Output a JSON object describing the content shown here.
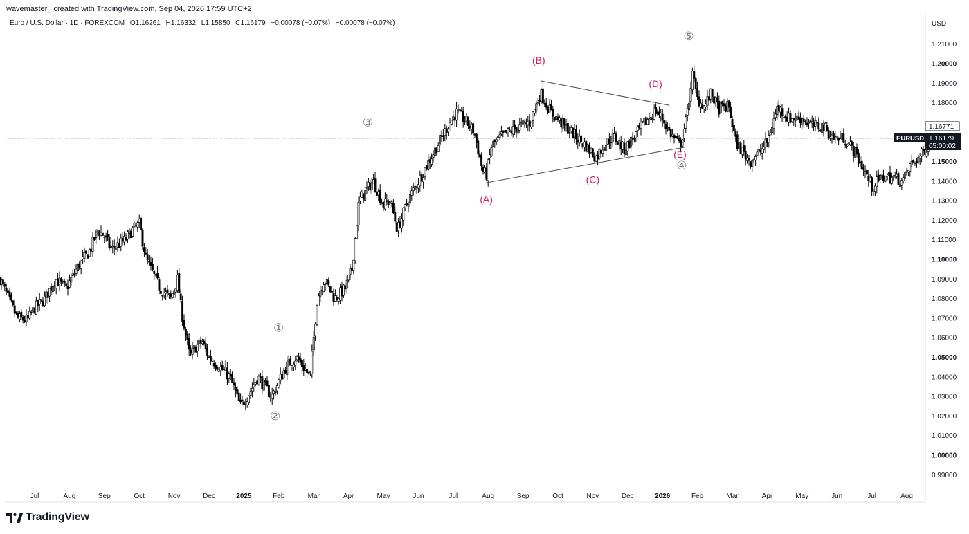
{
  "header": {
    "credit": "wavemaster_ created with TradingView.com, Sep 04, 2026 17:59 UTC+2",
    "legend": {
      "symbol": "Euro / U.S. Dollar · 1D · FOREXCOM",
      "open": "O1.16261",
      "high": "H1.16332",
      "low": "L1.15850",
      "close": "C1.16179",
      "change": "−0.00078 (−0.07%)",
      "change2": "−0.00078 (−0.07%)"
    }
  },
  "price_axis": {
    "currency": "USD",
    "ticker": "EURUSD",
    "last_price": "1.16179",
    "countdown": "05:00:02",
    "marker_price": "1.16771"
  },
  "brand": {
    "name": "TradingView"
  },
  "colors": {
    "wave_labels": "#d81b60",
    "cycle_labels": "#787b86",
    "candles": "#000000",
    "price_tag": "#131722"
  },
  "chart_data": {
    "type": "candlestick",
    "symbol": "EURUSD",
    "timeframe": "1D",
    "x_range": [
      "2024-06",
      "2026-09"
    ],
    "ylim": [
      0.985,
      1.215
    ],
    "y_ticks": [
      {
        "v": 0.99,
        "label": "0.99000",
        "bold": false
      },
      {
        "v": 1.0,
        "label": "1.00000",
        "bold": true
      },
      {
        "v": 1.01,
        "label": "1.01000",
        "bold": false
      },
      {
        "v": 1.02,
        "label": "1.02000",
        "bold": false
      },
      {
        "v": 1.03,
        "label": "1.03000",
        "bold": false
      },
      {
        "v": 1.04,
        "label": "1.04000",
        "bold": false
      },
      {
        "v": 1.05,
        "label": "1.05000",
        "bold": true
      },
      {
        "v": 1.06,
        "label": "1.06000",
        "bold": false
      },
      {
        "v": 1.07,
        "label": "1.07000",
        "bold": false
      },
      {
        "v": 1.08,
        "label": "1.08000",
        "bold": false
      },
      {
        "v": 1.09,
        "label": "1.09000",
        "bold": false
      },
      {
        "v": 1.1,
        "label": "1.10000",
        "bold": true
      },
      {
        "v": 1.11,
        "label": "1.11000",
        "bold": false
      },
      {
        "v": 1.12,
        "label": "1.12000",
        "bold": false
      },
      {
        "v": 1.13,
        "label": "1.13000",
        "bold": false
      },
      {
        "v": 1.14,
        "label": "1.14000",
        "bold": false
      },
      {
        "v": 1.15,
        "label": "1.15000",
        "bold": true
      },
      {
        "v": 1.18,
        "label": "1.18000",
        "bold": false
      },
      {
        "v": 1.19,
        "label": "1.19000",
        "bold": false
      },
      {
        "v": 1.2,
        "label": "1.20000",
        "bold": true
      },
      {
        "v": 1.21,
        "label": "1.21000",
        "bold": false
      }
    ],
    "x_ticks": [
      {
        "t": 1.0,
        "label": "Jul",
        "bold": false
      },
      {
        "t": 2.0,
        "label": "Aug",
        "bold": false
      },
      {
        "t": 3.0,
        "label": "Sep",
        "bold": false
      },
      {
        "t": 4.0,
        "label": "Oct",
        "bold": false
      },
      {
        "t": 5.0,
        "label": "Nov",
        "bold": false
      },
      {
        "t": 6.0,
        "label": "Dec",
        "bold": false
      },
      {
        "t": 7.0,
        "label": "2025",
        "bold": true
      },
      {
        "t": 8.0,
        "label": "Feb",
        "bold": false
      },
      {
        "t": 9.0,
        "label": "Mar",
        "bold": false
      },
      {
        "t": 10.0,
        "label": "Apr",
        "bold": false
      },
      {
        "t": 11.0,
        "label": "May",
        "bold": false
      },
      {
        "t": 12.0,
        "label": "Jun",
        "bold": false
      },
      {
        "t": 13.0,
        "label": "Jul",
        "bold": false
      },
      {
        "t": 14.0,
        "label": "Aug",
        "bold": false
      },
      {
        "t": 15.0,
        "label": "Sep",
        "bold": false
      },
      {
        "t": 16.0,
        "label": "Oct",
        "bold": false
      },
      {
        "t": 17.0,
        "label": "Nov",
        "bold": false
      },
      {
        "t": 18.0,
        "label": "Dec",
        "bold": false
      },
      {
        "t": 19.0,
        "label": "2026",
        "bold": true
      },
      {
        "t": 20.0,
        "label": "Feb",
        "bold": false
      },
      {
        "t": 21.0,
        "label": "Mar",
        "bold": false
      },
      {
        "t": 22.0,
        "label": "Apr",
        "bold": false
      },
      {
        "t": 23.0,
        "label": "May",
        "bold": false
      },
      {
        "t": 24.0,
        "label": "Jun",
        "bold": false
      },
      {
        "t": 25.0,
        "label": "Jul",
        "bold": false
      },
      {
        "t": 26.0,
        "label": "Aug",
        "bold": false
      }
    ],
    "price_path": [
      [
        0.0,
        1.09
      ],
      [
        0.2,
        1.082
      ],
      [
        0.5,
        1.07
      ],
      [
        0.8,
        1.069
      ],
      [
        1.0,
        1.075
      ],
      [
        1.3,
        1.08
      ],
      [
        1.6,
        1.09
      ],
      [
        1.9,
        1.085
      ],
      [
        2.2,
        1.095
      ],
      [
        2.6,
        1.105
      ],
      [
        2.8,
        1.115
      ],
      [
        3.0,
        1.112
      ],
      [
        3.2,
        1.105
      ],
      [
        3.6,
        1.11
      ],
      [
        3.8,
        1.115
      ],
      [
        4.0,
        1.118
      ],
      [
        4.2,
        1.1
      ],
      [
        4.6,
        1.085
      ],
      [
        4.9,
        1.08
      ],
      [
        5.1,
        1.09
      ],
      [
        5.2,
        1.075
      ],
      [
        5.45,
        1.05
      ],
      [
        5.6,
        1.055
      ],
      [
        5.8,
        1.058
      ],
      [
        6.0,
        1.05
      ],
      [
        6.3,
        1.045
      ],
      [
        6.6,
        1.04
      ],
      [
        6.9,
        1.025
      ],
      [
        7.1,
        1.03
      ],
      [
        7.4,
        1.04
      ],
      [
        7.6,
        1.035
      ],
      [
        7.8,
        1.03
      ],
      [
        8.2,
        1.045
      ],
      [
        8.5,
        1.05
      ],
      [
        8.9,
        1.04
      ],
      [
        9.1,
        1.08
      ],
      [
        9.3,
        1.09
      ],
      [
        9.6,
        1.08
      ],
      [
        9.9,
        1.085
      ],
      [
        10.1,
        1.095
      ],
      [
        10.3,
        1.13
      ],
      [
        10.5,
        1.135
      ],
      [
        10.7,
        1.14
      ],
      [
        11.0,
        1.128
      ],
      [
        11.2,
        1.13
      ],
      [
        11.4,
        1.115
      ],
      [
        11.7,
        1.13
      ],
      [
        12.0,
        1.14
      ],
      [
        12.3,
        1.15
      ],
      [
        12.6,
        1.16
      ],
      [
        12.9,
        1.17
      ],
      [
        13.1,
        1.175
      ],
      [
        13.4,
        1.17
      ],
      [
        13.6,
        1.165
      ],
      [
        13.85,
        1.145
      ],
      [
        13.95,
        1.143
      ],
      [
        14.1,
        1.158
      ],
      [
        14.4,
        1.163
      ],
      [
        14.8,
        1.167
      ],
      [
        15.2,
        1.17
      ],
      [
        15.5,
        1.185
      ],
      [
        15.8,
        1.175
      ],
      [
        16.2,
        1.168
      ],
      [
        16.5,
        1.163
      ],
      [
        16.8,
        1.158
      ],
      [
        17.1,
        1.152
      ],
      [
        17.3,
        1.158
      ],
      [
        17.6,
        1.163
      ],
      [
        17.9,
        1.156
      ],
      [
        18.2,
        1.163
      ],
      [
        18.5,
        1.17
      ],
      [
        18.8,
        1.176
      ],
      [
        19.0,
        1.172
      ],
      [
        19.2,
        1.165
      ],
      [
        19.5,
        1.158
      ],
      [
        19.7,
        1.173
      ],
      [
        19.85,
        1.195
      ],
      [
        20.0,
        1.182
      ],
      [
        20.2,
        1.178
      ],
      [
        20.4,
        1.185
      ],
      [
        20.6,
        1.177
      ],
      [
        20.9,
        1.178
      ],
      [
        21.1,
        1.16
      ],
      [
        21.3,
        1.155
      ],
      [
        21.5,
        1.15
      ],
      [
        21.8,
        1.155
      ],
      [
        22.0,
        1.16
      ],
      [
        22.3,
        1.178
      ],
      [
        22.6,
        1.172
      ],
      [
        23.0,
        1.172
      ],
      [
        23.3,
        1.168
      ],
      [
        23.6,
        1.168
      ],
      [
        23.9,
        1.162
      ],
      [
        24.2,
        1.162
      ],
      [
        24.5,
        1.155
      ],
      [
        24.8,
        1.145
      ],
      [
        25.0,
        1.137
      ],
      [
        25.3,
        1.142
      ],
      [
        25.6,
        1.142
      ],
      [
        25.9,
        1.14
      ],
      [
        26.1,
        1.148
      ],
      [
        26.4,
        1.153
      ],
      [
        26.6,
        1.158
      ],
      [
        26.75,
        1.162
      ]
    ],
    "pivots": {
      "wave_1": {
        "t": 8.0,
        "price": 1.063,
        "label": "①"
      },
      "wave_2": {
        "t": 7.9,
        "price": 1.018,
        "label": "②"
      },
      "wave_3": {
        "t": 10.55,
        "price": 1.168,
        "label": "③"
      },
      "wave_4": {
        "t": 19.55,
        "price": 1.146,
        "label": "④"
      },
      "wave_5": {
        "t": 19.75,
        "price": 1.212,
        "label": "⑤"
      },
      "wave_A": {
        "t": 13.95,
        "price": 1.129,
        "label": "(A)"
      },
      "wave_B": {
        "t": 15.45,
        "price": 1.2,
        "label": "(B)"
      },
      "wave_C": {
        "t": 17.0,
        "price": 1.139,
        "label": "(C)"
      },
      "wave_D": {
        "t": 18.8,
        "price": 1.188,
        "label": "(D)"
      },
      "wave_E": {
        "t": 19.5,
        "price": 1.152,
        "label": "(E)"
      }
    },
    "trendlines": [
      {
        "from": [
          13.95,
          1.1392
        ],
        "to": [
          19.7,
          1.1575
        ]
      },
      {
        "from": [
          15.5,
          1.1912
        ],
        "to": [
          19.2,
          1.1787
        ]
      }
    ],
    "last_price_line": 1.16179
  }
}
